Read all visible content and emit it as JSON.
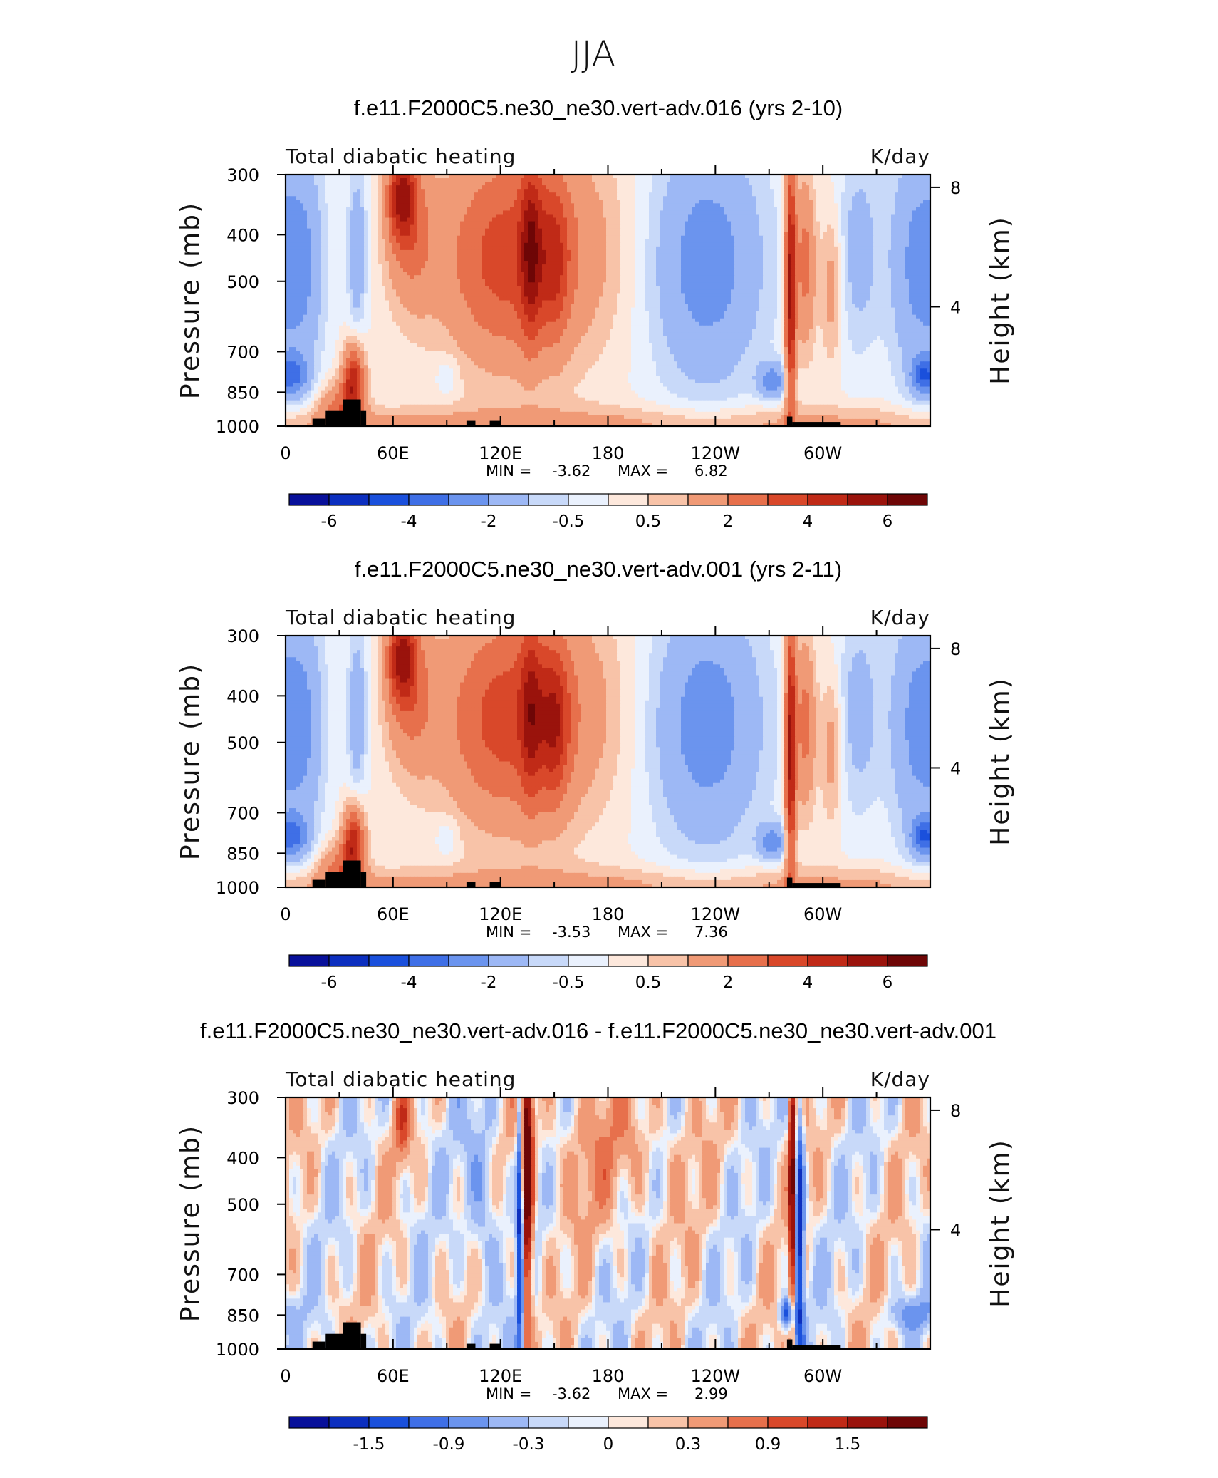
{
  "figure_title": "JJA",
  "chart_data": [
    {
      "type": "heatmap",
      "title": "f.e11.F2000C5.ne30_ne30.vert-adv.016 (yrs 2-10)",
      "left_label": "Total diabatic heating",
      "right_label": "K/day",
      "ylabel": "Pressure (mb)",
      "ylabel_right": "Height (km)",
      "xticks": [
        "0",
        "60E",
        "120E",
        "180",
        "120W",
        "60W"
      ],
      "xtick_values": [
        0,
        60,
        120,
        180,
        240,
        300
      ],
      "xlim": [
        0,
        360
      ],
      "yticks": [
        "300",
        "400",
        "500",
        "700",
        "850",
        "1000"
      ],
      "ytick_values": [
        300,
        400,
        500,
        700,
        850,
        1000
      ],
      "ylim": [
        300,
        1000
      ],
      "yticks_right": [
        "8",
        "4"
      ],
      "yticks_right_values": [
        8,
        4
      ],
      "min_label": "MIN =",
      "min_value": "-3.62",
      "max_label": "MAX =",
      "max_value": "6.82",
      "colorbar_labels": [
        "-6",
        "-4",
        "-2",
        "-0.5",
        "0.5",
        "2",
        "4",
        "6"
      ],
      "colorbar_colors": [
        "#08109a",
        "#0c2fbf",
        "#1a50dc",
        "#3f6fe6",
        "#6b94ee",
        "#9db8f5",
        "#c8d9f9",
        "#eaf1fd",
        "#fde8dc",
        "#f8c3a8",
        "#f09a76",
        "#e7704c",
        "#d9482a",
        "#c02a17",
        "#9a130c",
        "#6e0606"
      ],
      "field": "heating_016"
    },
    {
      "type": "heatmap",
      "title": "f.e11.F2000C5.ne30_ne30.vert-adv.001 (yrs 2-11)",
      "left_label": "Total diabatic heating",
      "right_label": "K/day",
      "ylabel": "Pressure (mb)",
      "ylabel_right": "Height (km)",
      "xticks": [
        "0",
        "60E",
        "120E",
        "180",
        "120W",
        "60W"
      ],
      "xtick_values": [
        0,
        60,
        120,
        180,
        240,
        300
      ],
      "xlim": [
        0,
        360
      ],
      "yticks": [
        "300",
        "400",
        "500",
        "700",
        "850",
        "1000"
      ],
      "ytick_values": [
        300,
        400,
        500,
        700,
        850,
        1000
      ],
      "ylim": [
        300,
        1000
      ],
      "yticks_right": [
        "8",
        "4"
      ],
      "yticks_right_values": [
        8,
        4
      ],
      "min_label": "MIN =",
      "min_value": "-3.53",
      "max_label": "MAX =",
      "max_value": "7.36",
      "colorbar_labels": [
        "-6",
        "-4",
        "-2",
        "-0.5",
        "0.5",
        "2",
        "4",
        "6"
      ],
      "colorbar_colors": [
        "#08109a",
        "#0c2fbf",
        "#1a50dc",
        "#3f6fe6",
        "#6b94ee",
        "#9db8f5",
        "#c8d9f9",
        "#eaf1fd",
        "#fde8dc",
        "#f8c3a8",
        "#f09a76",
        "#e7704c",
        "#d9482a",
        "#c02a17",
        "#9a130c",
        "#6e0606"
      ],
      "field": "heating_001"
    },
    {
      "type": "heatmap",
      "title": "f.e11.F2000C5.ne30_ne30.vert-adv.016 - f.e11.F2000C5.ne30_ne30.vert-adv.001",
      "left_label": "Total diabatic heating",
      "right_label": "K/day",
      "ylabel": "Pressure (mb)",
      "ylabel_right": "Height (km)",
      "xticks": [
        "0",
        "60E",
        "120E",
        "180",
        "120W",
        "60W"
      ],
      "xtick_values": [
        0,
        60,
        120,
        180,
        240,
        300
      ],
      "xlim": [
        0,
        360
      ],
      "yticks": [
        "300",
        "400",
        "500",
        "700",
        "850",
        "1000"
      ],
      "ytick_values": [
        300,
        400,
        500,
        700,
        850,
        1000
      ],
      "ylim": [
        300,
        1000
      ],
      "yticks_right": [
        "8",
        "4"
      ],
      "yticks_right_values": [
        8,
        4
      ],
      "min_label": "MIN =",
      "min_value": "-3.62",
      "max_label": "MAX =",
      "max_value": "2.99",
      "colorbar_labels": [
        "-1.5",
        "-0.9",
        "-0.3",
        "0",
        "0.3",
        "0.9",
        "1.5"
      ],
      "colorbar_colors": [
        "#08109a",
        "#0c2fbf",
        "#1a50dc",
        "#3f6fe6",
        "#6b94ee",
        "#9db8f5",
        "#c8d9f9",
        "#eaf1fd",
        "#fde8dc",
        "#f8c3a8",
        "#f09a76",
        "#e7704c",
        "#d9482a",
        "#c02a17",
        "#9a130c",
        "#6e0606"
      ],
      "field": "difference"
    }
  ]
}
